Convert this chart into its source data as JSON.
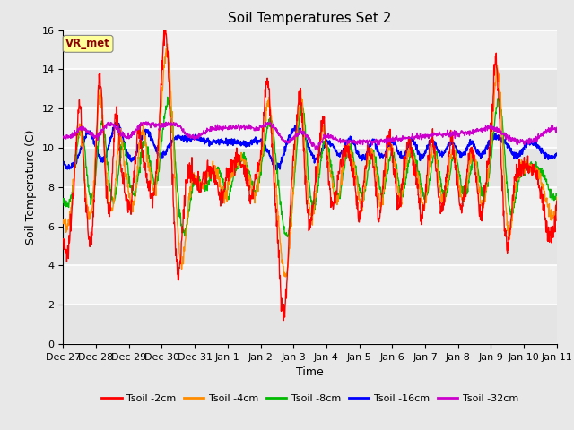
{
  "title": "Soil Temperatures Set 2",
  "xlabel": "Time",
  "ylabel": "Soil Temperature (C)",
  "ylim": [
    0,
    16
  ],
  "yticks": [
    0,
    2,
    4,
    6,
    8,
    10,
    12,
    14,
    16
  ],
  "x_labels": [
    "Dec 27",
    "Dec 28",
    "Dec 29",
    "Dec 30",
    "Dec 31",
    "Jan 1",
    "Jan 2",
    "Jan 3",
    "Jan 4",
    "Jan 5",
    "Jan 6",
    "Jan 7",
    "Jan 8",
    "Jan 9",
    "Jan 10",
    "Jan 11"
  ],
  "annotation_text": "VR_met",
  "annotation_color": "#8B0000",
  "annotation_bg": "#FFFF99",
  "legend_labels": [
    "Tsoil -2cm",
    "Tsoil -4cm",
    "Tsoil -8cm",
    "Tsoil -16cm",
    "Tsoil -32cm"
  ],
  "line_colors": [
    "#FF0000",
    "#FF8C00",
    "#00BB00",
    "#0000FF",
    "#CC00CC"
  ],
  "bg_color": "#E8E8E8",
  "plot_bg": "#F0F0F0",
  "grid_color": "#FFFFFF",
  "figwidth": 6.4,
  "figheight": 4.8,
  "dpi": 100
}
